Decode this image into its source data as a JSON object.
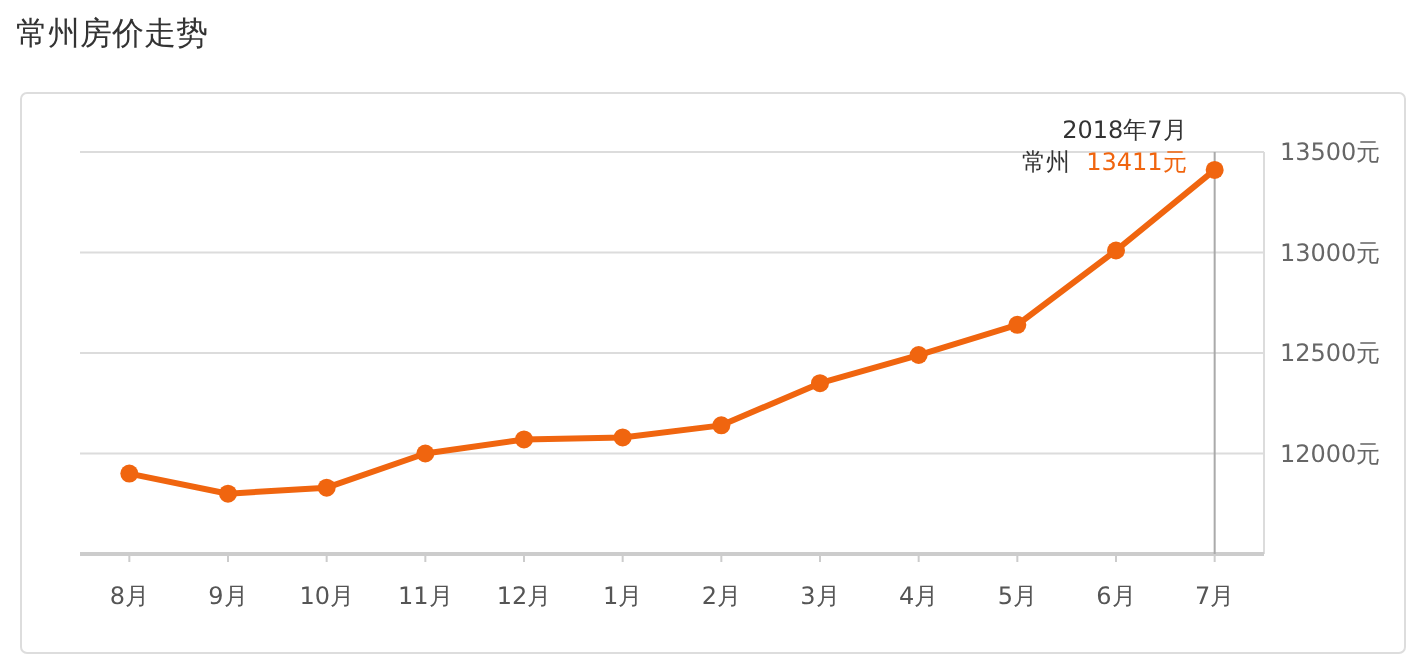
{
  "chart_data": {
    "type": "line",
    "title": "常州房价走势",
    "categories": [
      "8月",
      "9月",
      "10月",
      "11月",
      "12月",
      "1月",
      "2月",
      "3月",
      "4月",
      "5月",
      "6月",
      "7月"
    ],
    "series": [
      {
        "name": "常州",
        "color": "#f0650f",
        "values": [
          11900,
          11800,
          11830,
          12000,
          12070,
          12080,
          12140,
          12350,
          12490,
          12640,
          13010,
          13411
        ],
        "value_labels": [
          null,
          null,
          null,
          null,
          null,
          null,
          null,
          null,
          null,
          null,
          null,
          "13411元"
        ]
      }
    ],
    "ylim": [
      11500,
      13500
    ],
    "yticks": [
      {
        "value": 12000,
        "label": "12000元"
      },
      {
        "value": 12500,
        "label": "12500元"
      },
      {
        "value": 13000,
        "label": "13000元"
      },
      {
        "value": 13500,
        "label": "13500元"
      }
    ],
    "grid": "y",
    "marker": "circle",
    "line_style": "solid",
    "ref_lines": [
      {
        "axis": "x",
        "value": "7月",
        "color": "#aaaaaa"
      }
    ],
    "annotations": [
      {
        "text": "2018年7月",
        "x": "7月",
        "y": 13411
      }
    ]
  }
}
